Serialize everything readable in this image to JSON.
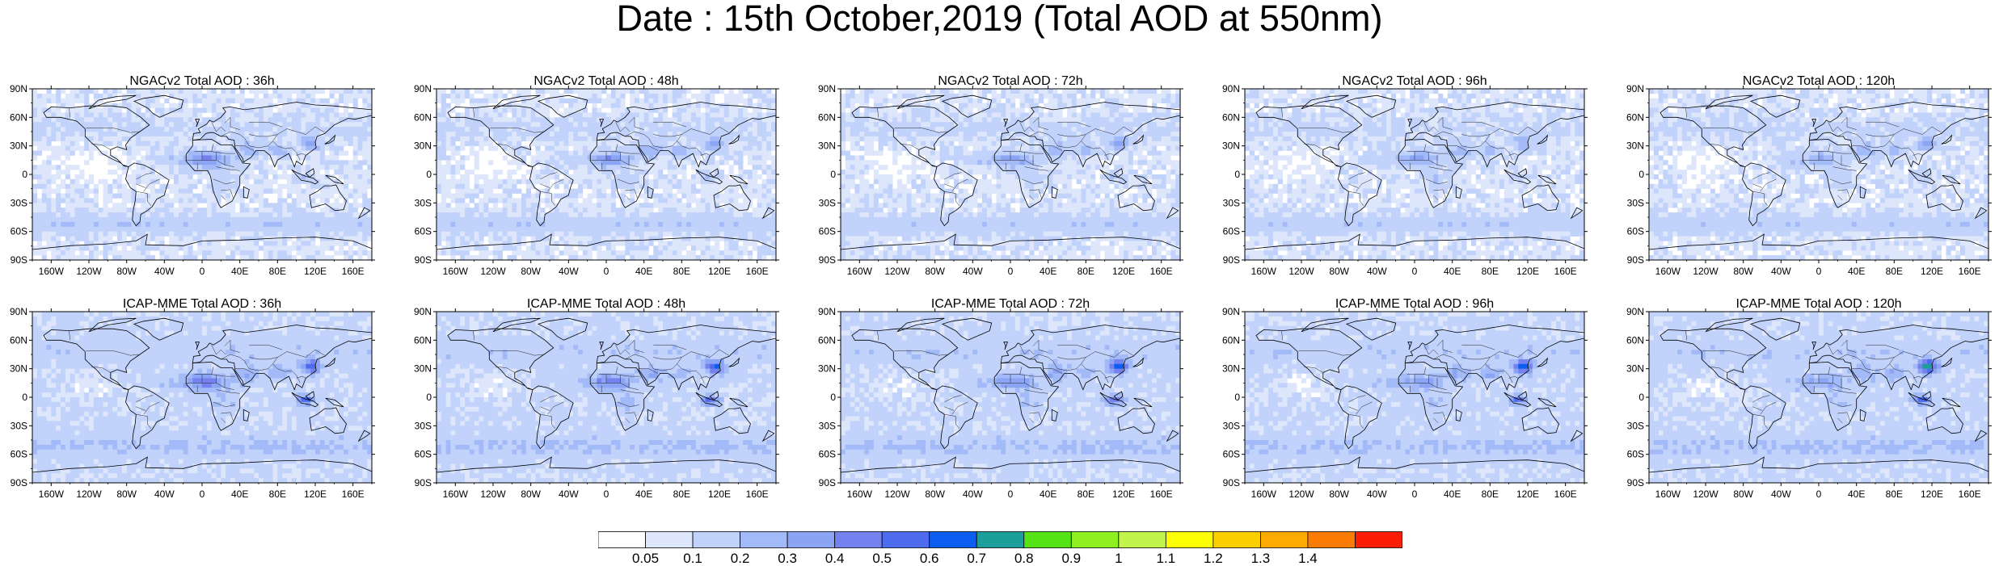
{
  "title": "Date : 15th October,2019 (Total AOD at 550nm)",
  "lat_ticks": [
    "90N",
    "60N",
    "30N",
    "0",
    "30S",
    "60S",
    "90S"
  ],
  "lon_ticks": [
    "160W",
    "120W",
    "80W",
    "40W",
    "0",
    "40E",
    "80E",
    "120E",
    "160E"
  ],
  "panels": [
    {
      "title": "NGACv2 Total AOD : 36h",
      "model": "NGACv2",
      "lead": "36h"
    },
    {
      "title": "NGACv2 Total AOD : 48h",
      "model": "NGACv2",
      "lead": "48h"
    },
    {
      "title": "NGACv2 Total AOD : 72h",
      "model": "NGACv2",
      "lead": "72h"
    },
    {
      "title": "NGACv2 Total AOD : 96h",
      "model": "NGACv2",
      "lead": "96h"
    },
    {
      "title": "NGACv2 Total AOD : 120h",
      "model": "NGACv2",
      "lead": "120h"
    },
    {
      "title": "ICAP-MME Total AOD : 36h",
      "model": "ICAP-MME",
      "lead": "36h"
    },
    {
      "title": "ICAP-MME Total AOD : 48h",
      "model": "ICAP-MME",
      "lead": "48h"
    },
    {
      "title": "ICAP-MME Total AOD : 72h",
      "model": "ICAP-MME",
      "lead": "72h"
    },
    {
      "title": "ICAP-MME Total AOD : 96h",
      "model": "ICAP-MME",
      "lead": "96h"
    },
    {
      "title": "ICAP-MME Total AOD : 120h",
      "model": "ICAP-MME",
      "lead": "120h"
    }
  ],
  "colorbar": {
    "labels": [
      "0.05",
      "0.1",
      "0.2",
      "0.3",
      "0.4",
      "0.5",
      "0.6",
      "0.7",
      "0.8",
      "0.9",
      "1",
      "1.1",
      "1.2",
      "1.3",
      "1.4"
    ],
    "colors": [
      "#ffffff",
      "#dde6fb",
      "#c1d2fb",
      "#a3baf8",
      "#8ba4f4",
      "#7481ee",
      "#4f6cef",
      "#0b5ef0",
      "#1c9f9b",
      "#56e315",
      "#8ef11f",
      "#c2f54c",
      "#fdfd04",
      "#fccf02",
      "#fcab02",
      "#fb7c02",
      "#fb1d06"
    ]
  }
}
